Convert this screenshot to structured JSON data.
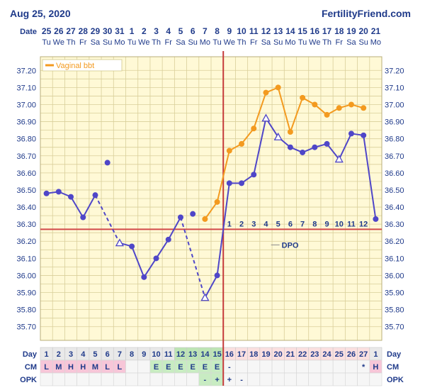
{
  "header": {
    "date_text": "Aug 25, 2020",
    "brand": "FertilityFriend.com"
  },
  "chart_data": {
    "type": "line",
    "row_labels": {
      "date": "Date",
      "day": "Day",
      "cm": "CM",
      "opk": "OPK",
      "dpo": "DPO"
    },
    "dates": [
      "25",
      "26",
      "27",
      "28",
      "29",
      "30",
      "31",
      "1",
      "2",
      "3",
      "4",
      "5",
      "6",
      "7",
      "8",
      "9",
      "10",
      "11",
      "12",
      "13",
      "14",
      "15",
      "16",
      "17",
      "18",
      "19",
      "20",
      "21"
    ],
    "weekdays": [
      "Tu",
      "We",
      "Th",
      "Fr",
      "Sa",
      "Su",
      "Mo",
      "Tu",
      "We",
      "Th",
      "Fr",
      "Sa",
      "Su",
      "Mo",
      "Tu",
      "We",
      "Th",
      "Fr",
      "Sa",
      "Su",
      "Mo",
      "Tu",
      "We",
      "Th",
      "Fr",
      "Sa",
      "Su",
      "Mo"
    ],
    "cycle_days": [
      "1",
      "2",
      "3",
      "4",
      "5",
      "6",
      "7",
      "8",
      "9",
      "10",
      "11",
      "12",
      "13",
      "14",
      "15",
      "16",
      "17",
      "18",
      "19",
      "20",
      "21",
      "22",
      "23",
      "24",
      "25",
      "26",
      "27",
      "1"
    ],
    "cm": [
      "L",
      "M",
      "H",
      "H",
      "M",
      "L",
      "L",
      "",
      "",
      "E",
      "E",
      "E",
      "E",
      "E",
      "E",
      "-",
      "",
      "",
      "",
      "",
      "",
      "",
      "",
      "",
      "",
      "",
      "*",
      "H"
    ],
    "opk": [
      "",
      "",
      "",
      "",
      "",
      "",
      "",
      "",
      "",
      "",
      "",
      "",
      "",
      "-",
      "+",
      "+",
      "-",
      "",
      "",
      "",
      "",
      "",
      "",
      "",
      "",
      "",
      "",
      ""
    ],
    "y_ticks": [
      "37.20",
      "37.10",
      "37.00",
      "36.90",
      "36.80",
      "36.70",
      "36.60",
      "36.50",
      "36.40",
      "36.30",
      "36.20",
      "36.10",
      "36.00",
      "35.90",
      "35.80",
      "35.70"
    ],
    "ylim": [
      35.62,
      37.28
    ],
    "coverline": 36.27,
    "ovulation_day_index": 14,
    "dpo_labels": [
      "1",
      "2",
      "3",
      "4",
      "5",
      "6",
      "7",
      "8",
      "9",
      "10",
      "11",
      "12"
    ],
    "legend": [
      {
        "name": "Vaginal bbt",
        "color": "#f39a1f"
      }
    ],
    "series": [
      {
        "name": "",
        "color": "#4f46c8",
        "values": [
          36.48,
          36.49,
          36.46,
          36.34,
          36.47,
          36.66,
          36.19,
          36.17,
          35.99,
          36.1,
          36.21,
          36.34,
          36.36,
          35.87,
          36.0,
          36.54,
          36.54,
          36.59,
          36.92,
          36.81,
          36.75,
          36.72,
          36.75,
          36.77,
          36.68,
          36.83,
          36.82,
          36.33
        ],
        "open_markers": [
          6,
          13,
          18,
          19,
          24
        ]
      },
      {
        "name": "Vaginal bbt",
        "color": "#f39a1f",
        "values": [
          null,
          null,
          null,
          null,
          null,
          null,
          null,
          null,
          null,
          null,
          null,
          null,
          null,
          36.33,
          36.43,
          36.73,
          36.77,
          36.86,
          37.07,
          37.1,
          36.84,
          37.04,
          37.0,
          36.94,
          36.98,
          37.0,
          36.98,
          null
        ]
      }
    ]
  },
  "colors": {
    "grid_bg": "#fff9d6",
    "grid_line": "#d9cf9a",
    "coverline": "#d24a4a",
    "ovulation_line": "#c53b3b",
    "cm_pink": "#f7c6d8",
    "cm_green": "#c8ecc2",
    "fertile_green": "#bde5b4",
    "luteal_pink": "#fbe0e0",
    "day_row": "#e9e9e9"
  }
}
